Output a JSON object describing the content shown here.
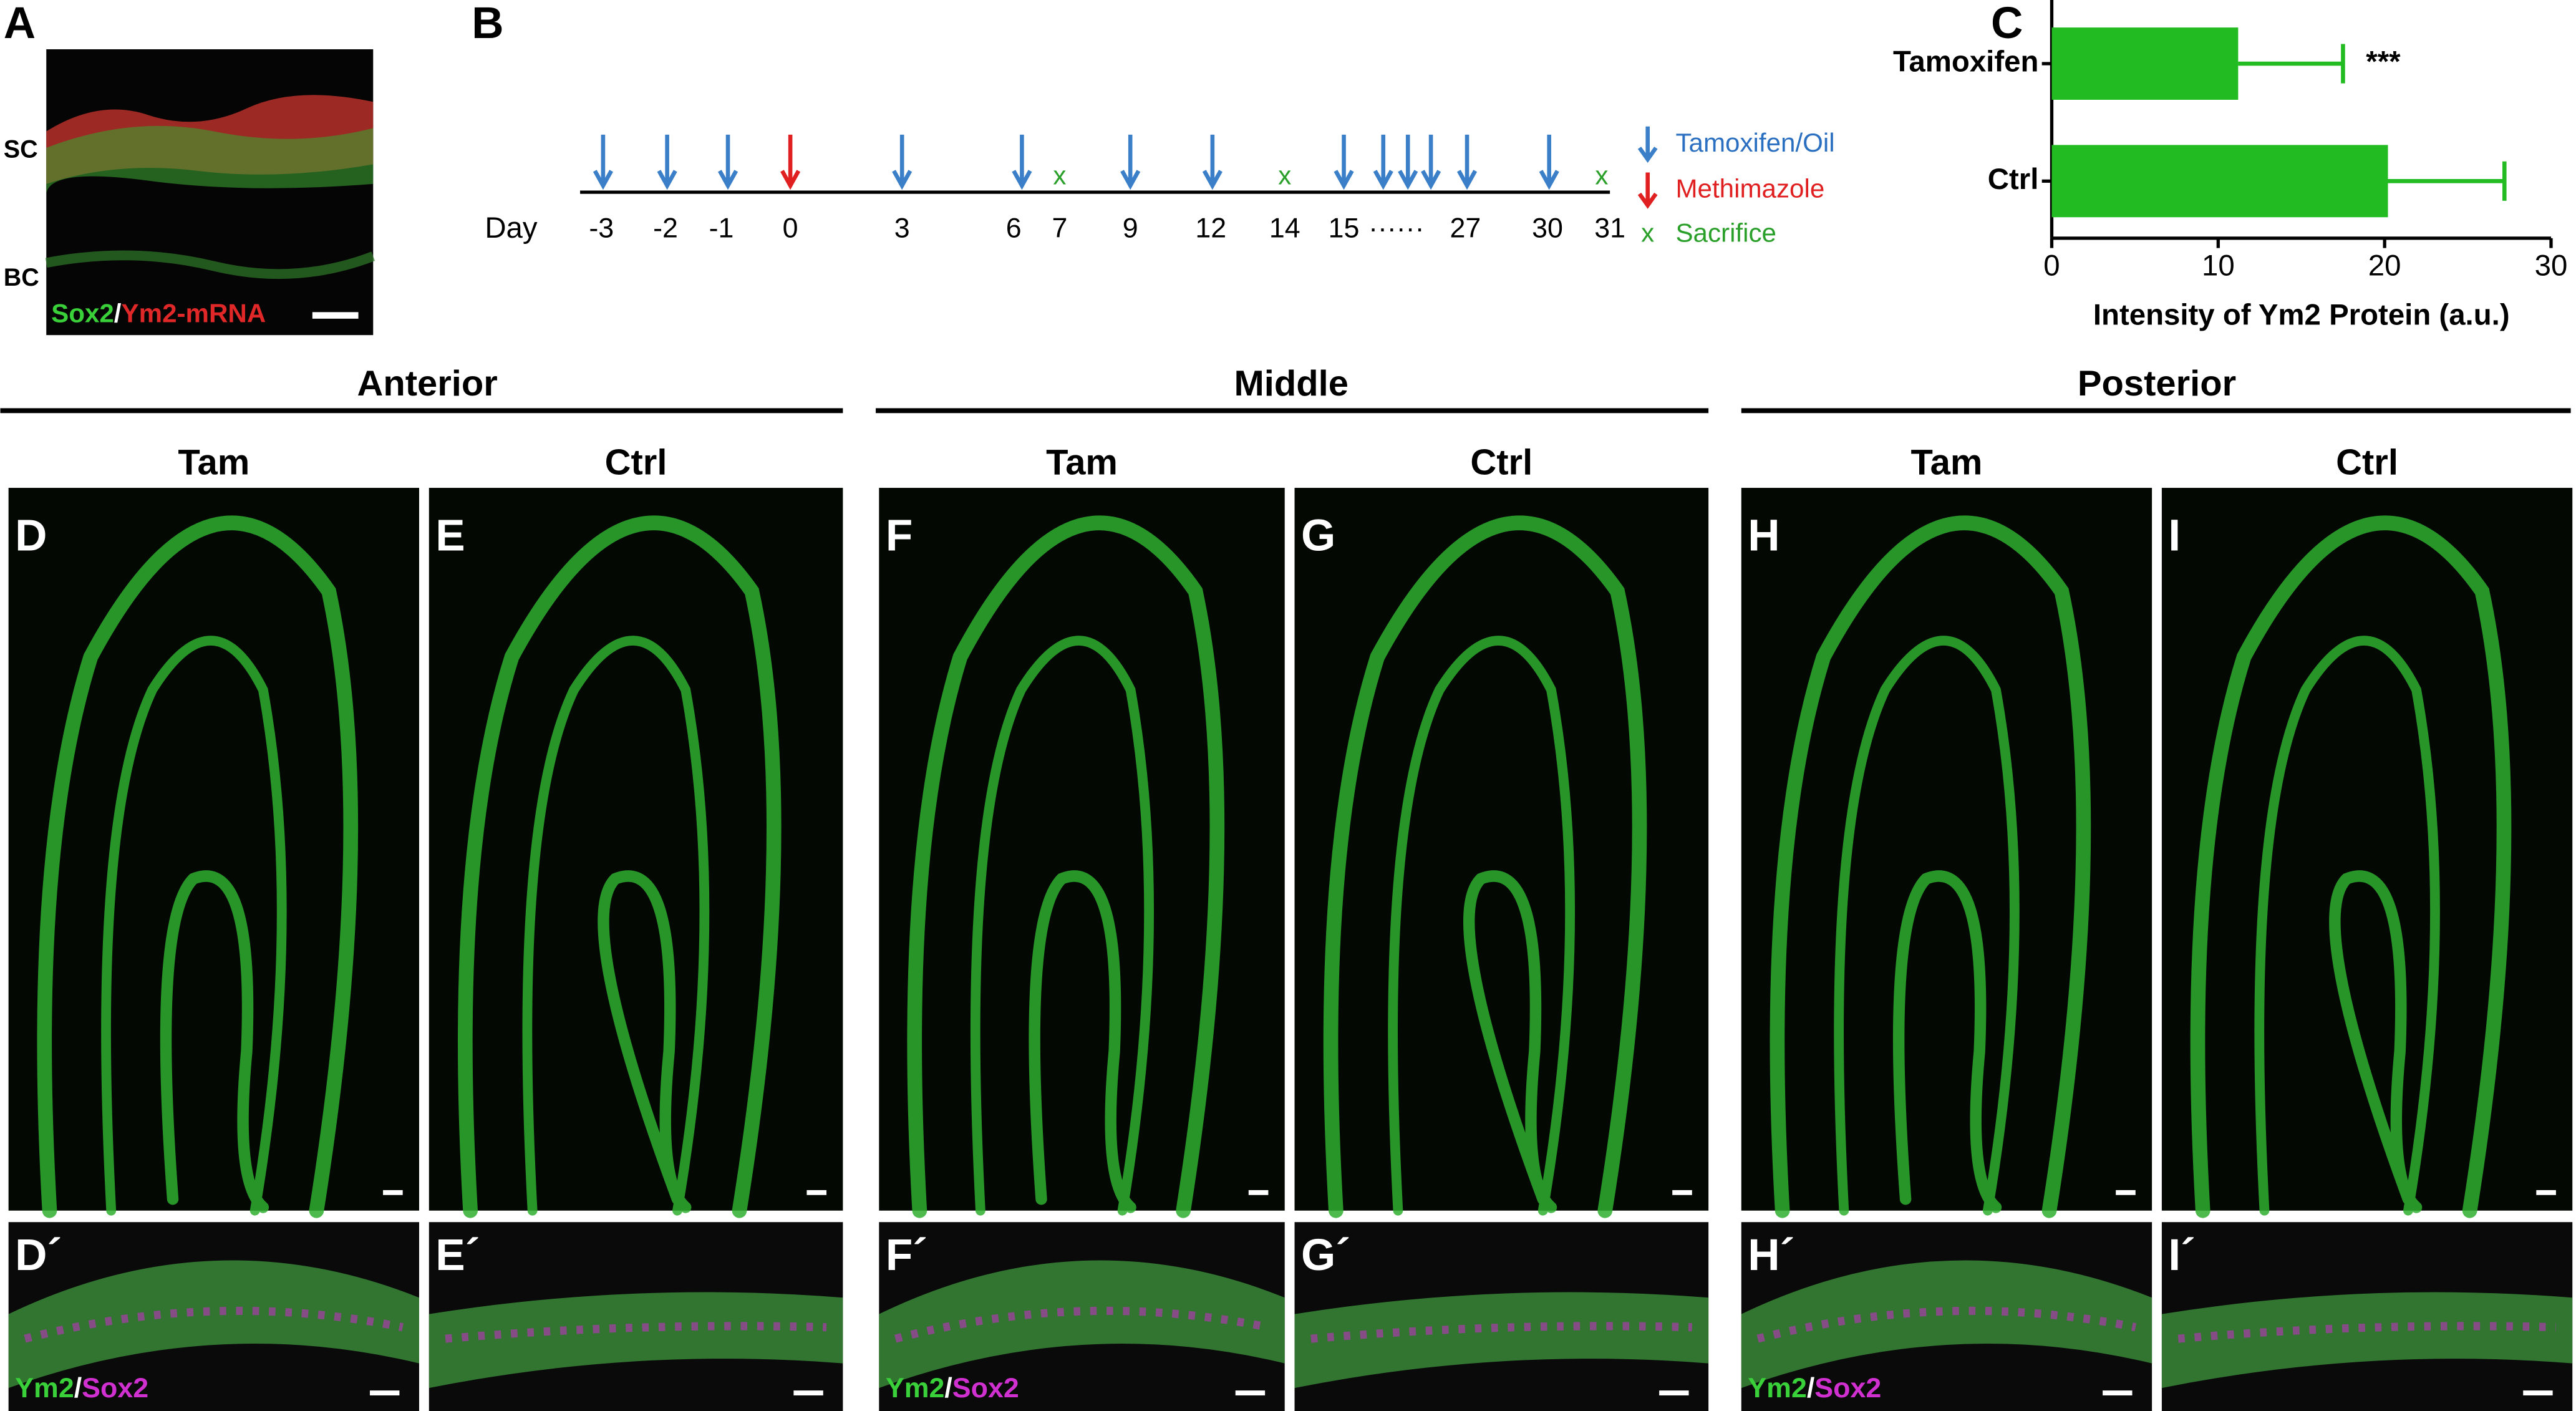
{
  "panel_labels": [
    "A",
    "B",
    "C",
    "D",
    "E",
    "F",
    "G",
    "H",
    "I",
    "D´",
    "E´",
    "F´",
    "G´",
    "H´",
    "I´"
  ],
  "panel_a": {
    "top_label": "SC",
    "bottom_label": "BC",
    "stain_1": "Sox2",
    "separator": "/",
    "stain_2": "Ym2-mRNA"
  },
  "timeline": {
    "day_label": "Day",
    "days": [
      "-3",
      "-2",
      "-1",
      "0",
      "3",
      "6",
      "7",
      "9",
      "12",
      "14",
      "15",
      "······",
      "27",
      "30",
      "31"
    ],
    "legend": [
      "Tamoxifen/Oil",
      "Methimazole",
      "Sacrifice"
    ]
  },
  "chart_data": {
    "type": "bar",
    "orientation": "horizontal",
    "categories": [
      "Tamoxifen",
      "Ctrl"
    ],
    "values": [
      11.2,
      20.2
    ],
    "errors": [
      6.3,
      7.0
    ],
    "color": "#22bb22",
    "xlabel": "Intensity of Ym2 Protein (a.u.)",
    "xlim": [
      0,
      30
    ],
    "xticks": [
      0,
      10,
      20,
      30
    ],
    "annotations": [
      "***",
      null
    ]
  },
  "regions": [
    "Anterior",
    "Middle",
    "Posterior"
  ],
  "conditions": [
    "Tam",
    "Ctrl",
    "Tam",
    "Ctrl",
    "Tam",
    "Ctrl"
  ],
  "stain_label": {
    "stain_1": "Ym2",
    "separator": "/",
    "stain_2": "Sox2"
  }
}
